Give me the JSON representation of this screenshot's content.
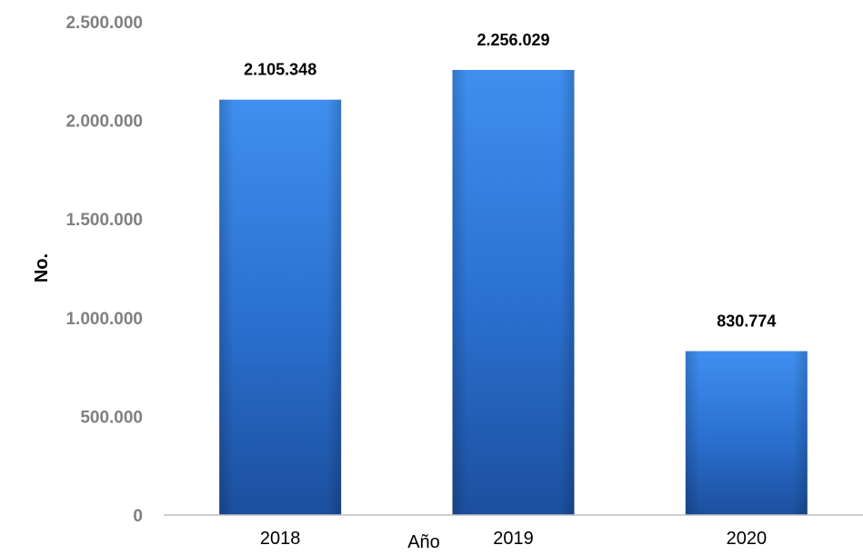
{
  "chart_data": {
    "type": "bar",
    "title": "",
    "xlabel": "Año",
    "ylabel": "No.",
    "categories": [
      "2018",
      "2019",
      "2020"
    ],
    "values": [
      2105348,
      2256029,
      830774
    ],
    "data_labels": [
      "2.105.348",
      "2.256.029",
      "830.774"
    ],
    "ylim": [
      0,
      2500000
    ],
    "yticks": [
      0,
      500000,
      1000000,
      1500000,
      2000000,
      2500000
    ],
    "ytick_labels": [
      "0",
      "500.000",
      "1.000.000",
      "1.500.000",
      "2.000.000",
      "2.500.000"
    ],
    "grid": false,
    "legend": "none",
    "colors": {
      "bar_top": "#3f8ff0",
      "bar_mid": "#2a6fce",
      "bar_bottom": "#1c4f9e",
      "axis": "#bfbfbf",
      "tick_text": "#808080"
    }
  }
}
